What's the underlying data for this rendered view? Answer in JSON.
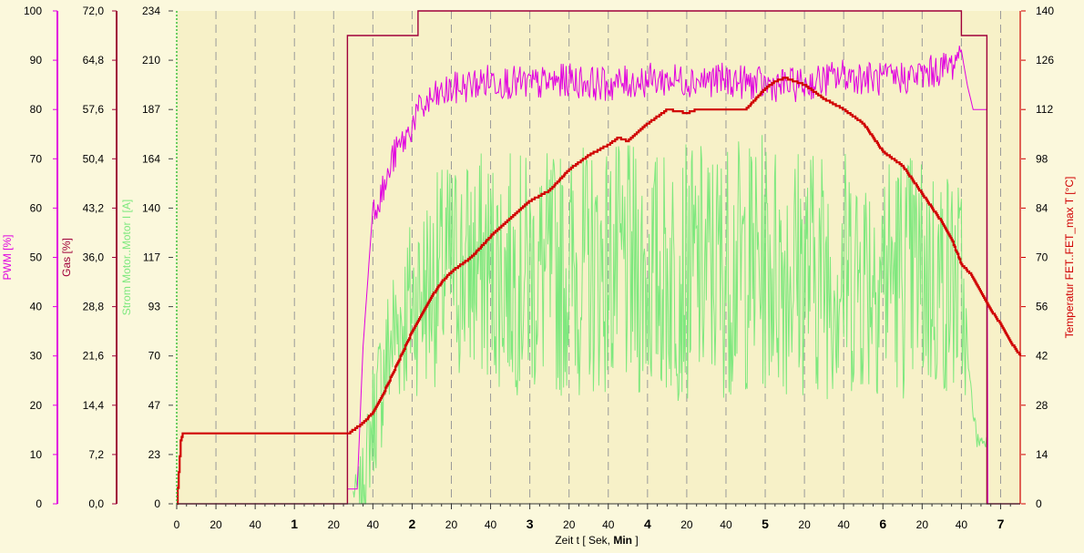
{
  "chart_data": {
    "type": "line",
    "colors": {
      "pwm": "#e000e0",
      "gas": "#a0003a",
      "strom": "#7ee87e",
      "temperatur": "#d00000",
      "plot_background": "#f7f1c8",
      "page_background": "#fbf8dc",
      "grid": "#9a9a9a"
    },
    "x_axis": {
      "label_prefix": "Zeit  t   [ Sek, ",
      "label_unit_bold": "Min",
      "label_suffix": " ]",
      "range_seconds": [
        0,
        430
      ],
      "tick_labels": [
        "0",
        "20",
        "40",
        "1",
        "20",
        "40",
        "2",
        "20",
        "40",
        "3",
        "20",
        "40",
        "4",
        "20",
        "40",
        "5",
        "20",
        "40",
        "6",
        "20",
        "40",
        "7"
      ],
      "major_tick_labels": [
        "1",
        "2",
        "3",
        "4",
        "5",
        "6",
        "7"
      ],
      "grid": "dashed vertical every 20 s"
    },
    "axes": [
      {
        "name": "PWM",
        "label": "PWM  [%]",
        "range": [
          0,
          100
        ],
        "ticks": [
          "0",
          "10",
          "20",
          "30",
          "40",
          "50",
          "60",
          "70",
          "80",
          "90",
          "100"
        ]
      },
      {
        "name": "Gas",
        "label": "Gas  [%]",
        "range": [
          0,
          72
        ],
        "ticks": [
          "0,0",
          "7,2",
          "14,4",
          "21,6",
          "28,8",
          "36,0",
          "43,2",
          "50,4",
          "57,6",
          "64,8",
          "72,0"
        ]
      },
      {
        "name": "Strom",
        "label": "Strom Motor..Motor   I   [A]",
        "range": [
          0,
          234
        ],
        "ticks": [
          "0",
          "23",
          "47",
          "70",
          "93",
          "117",
          "140",
          "164",
          "187",
          "210",
          "234"
        ]
      },
      {
        "name": "Temperatur",
        "label": "Temperatur FET..FET_max   T   [°C]",
        "range": [
          0,
          140
        ],
        "ticks": [
          "0",
          "14",
          "28",
          "42",
          "56",
          "70",
          "84",
          "98",
          "112",
          "126",
          "140"
        ]
      }
    ],
    "series": [
      {
        "name": "Gas",
        "axis": "Gas",
        "x": [
          0,
          87,
          87,
          123,
          123,
          400,
          400,
          413,
          413,
          430
        ],
        "y": [
          0,
          0,
          68.4,
          68.4,
          72,
          72,
          68.4,
          68.4,
          0,
          0
        ]
      },
      {
        "name": "PWM",
        "axis": "PWM",
        "x": [
          87,
          92,
          95,
          100,
          103,
          107,
          110,
          113,
          118,
          122,
          130,
          140,
          160,
          180,
          200,
          220,
          240,
          260,
          280,
          300,
          320,
          340,
          360,
          380,
          395,
          400,
          403,
          406,
          410,
          413,
          413.5,
          430
        ],
        "y": [
          3,
          3,
          32,
          60,
          62,
          65,
          70,
          72,
          75,
          79,
          82,
          84,
          86,
          85,
          86,
          85,
          86,
          86,
          86,
          85,
          85,
          87,
          86,
          87,
          89,
          92,
          85,
          80,
          80,
          80,
          0,
          0
        ]
      },
      {
        "name": "Strom",
        "axis": "Strom",
        "center": {
          "x": [
            90,
            95,
            100,
            110,
            120,
            130,
            140,
            160,
            180,
            200,
            220,
            240,
            260,
            280,
            300,
            320,
            340,
            360,
            380,
            395,
            400,
            404,
            408,
            411,
            413
          ],
          "y": [
            5,
            10,
            40,
            80,
            95,
            105,
            112,
            112,
            108,
            110,
            112,
            108,
            110,
            112,
            114,
            112,
            110,
            112,
            108,
            105,
            100,
            60,
            30,
            30,
            30
          ]
        },
        "amplitude": {
          "x": [
            90,
            100,
            120,
            140,
            200,
            300,
            380,
            400,
            404,
            413
          ],
          "y": [
            5,
            30,
            45,
            55,
            60,
            62,
            60,
            55,
            5,
            3
          ]
        }
      },
      {
        "name": "Temperatur",
        "axis": "Temperatur",
        "x": [
          0,
          2,
          3,
          20,
          40,
          60,
          70,
          82,
          88,
          90,
          95,
          100,
          105,
          110,
          115,
          120,
          125,
          130,
          135,
          140,
          150,
          160,
          170,
          180,
          190,
          200,
          210,
          220,
          225,
          230,
          240,
          250,
          260,
          265,
          270,
          280,
          290,
          300,
          305,
          310,
          320,
          330,
          340,
          350,
          360,
          370,
          380,
          390,
          395,
          400,
          405,
          410,
          415,
          420,
          425,
          430
        ],
        "y": [
          0,
          18,
          20,
          20,
          20,
          20,
          20,
          20,
          20,
          21,
          23,
          26,
          31,
          37,
          43,
          49,
          54,
          59,
          63,
          66,
          70,
          76,
          81,
          86,
          89,
          95,
          99,
          102,
          104,
          103,
          108,
          112,
          111,
          112,
          112,
          112,
          112,
          118,
          120,
          121,
          119,
          115,
          112,
          108,
          100,
          96,
          88,
          80,
          75,
          68,
          65,
          60,
          55,
          51,
          46,
          42
        ]
      }
    ]
  }
}
